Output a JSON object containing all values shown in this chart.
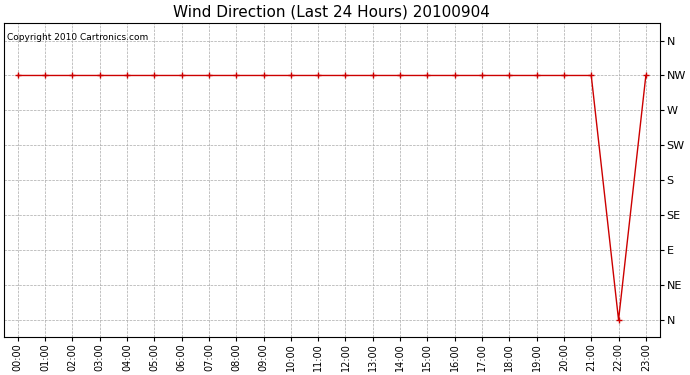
{
  "title": "Wind Direction (Last 24 Hours) 20100904",
  "copyright": "Copyright 2010 Cartronics.com",
  "background_color": "#ffffff",
  "line_color": "#cc0000",
  "grid_color": "#aaaaaa",
  "y_labels_top_to_bottom": [
    "N",
    "NW",
    "W",
    "SW",
    "S",
    "SE",
    "E",
    "NE",
    "N"
  ],
  "x_labels": [
    "00:00",
    "01:00",
    "02:00",
    "03:00",
    "04:00",
    "05:00",
    "06:00",
    "07:00",
    "08:00",
    "09:00",
    "10:00",
    "11:00",
    "12:00",
    "13:00",
    "14:00",
    "15:00",
    "16:00",
    "17:00",
    "18:00",
    "19:00",
    "20:00",
    "21:00",
    "22:00",
    "23:00"
  ],
  "x_values": [
    0,
    1,
    2,
    3,
    4,
    5,
    6,
    7,
    8,
    9,
    10,
    11,
    12,
    13,
    14,
    15,
    16,
    17,
    18,
    19,
    20,
    21,
    22,
    23
  ],
  "y_data": [
    7,
    7,
    7,
    7,
    7,
    7,
    7,
    7,
    7,
    7,
    7,
    7,
    7,
    7,
    7,
    7,
    7,
    7,
    7,
    7,
    7,
    7,
    0,
    7
  ],
  "title_fontsize": 11,
  "copyright_fontsize": 6.5,
  "axis_fontsize": 8,
  "tick_fontsize": 7,
  "figwidth": 6.9,
  "figheight": 3.75,
  "dpi": 100
}
